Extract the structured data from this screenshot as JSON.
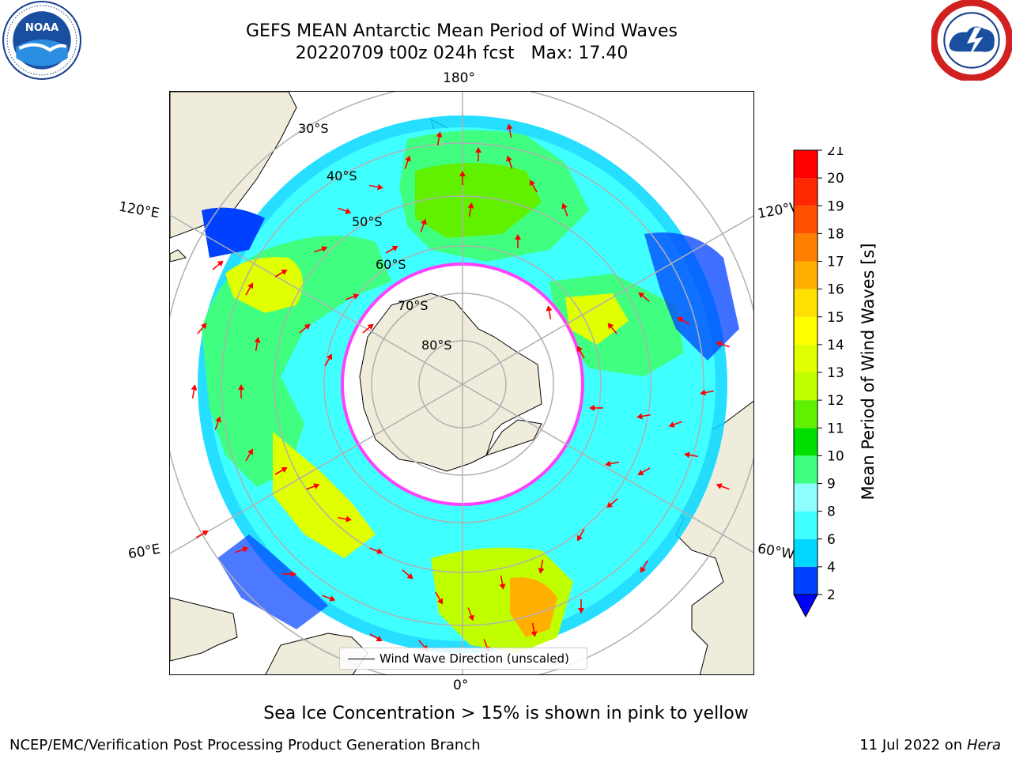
{
  "header": {
    "title_line1": "GEFS MEAN Antarctic Mean Period of Wind Waves",
    "title_line2": "20220709 t00z 024h fcst   Max: 17.40"
  },
  "map": {
    "projection": "south-polar-stereographic",
    "longitude_labels": {
      "top": "180°",
      "bottom": "0°",
      "upper_left": "120°E",
      "lower_left": "60°E",
      "upper_right": "120°W",
      "lower_right": "60°W"
    },
    "latitude_labels": [
      "30°S",
      "40°S",
      "50°S",
      "60°S",
      "70°S",
      "80°S"
    ],
    "colors": {
      "land": "#efecdc",
      "ocean_background": "#ffffff",
      "gridline": "#b0b0b0",
      "ice_edge": "#ff40ff",
      "arrows": "#ff0000"
    }
  },
  "colorbar": {
    "label": "Mean Period of Wind Waves [s]",
    "ticks": [
      "2",
      "4",
      "6",
      "8",
      "9",
      "10",
      "11",
      "12",
      "13",
      "14",
      "15",
      "16",
      "17",
      "18",
      "19",
      "20",
      "21"
    ],
    "colors": [
      "#0040ff",
      "#00d8ff",
      "#40ffff",
      "#90ffff",
      "#40ff80",
      "#00e000",
      "#60f000",
      "#c0ff00",
      "#e0ff00",
      "#ffff00",
      "#ffe000",
      "#ffb000",
      "#ff8000",
      "#ff5000",
      "#ff2800",
      "#ff0000"
    ],
    "extend_below_color": "#0000ff"
  },
  "legend": {
    "entry": "Wind Wave Direction (unscaled)"
  },
  "notes": {
    "ice": "Sea Ice Concentration > 15% is shown in pink to yellow"
  },
  "footer": {
    "producer": "NCEP/EMC/Verification Post Processing Product Generation Branch",
    "date": "11 Jul 2022 on ",
    "system": "Hera"
  },
  "logos": {
    "left": "noaa-logo",
    "right": "nws-logo"
  }
}
